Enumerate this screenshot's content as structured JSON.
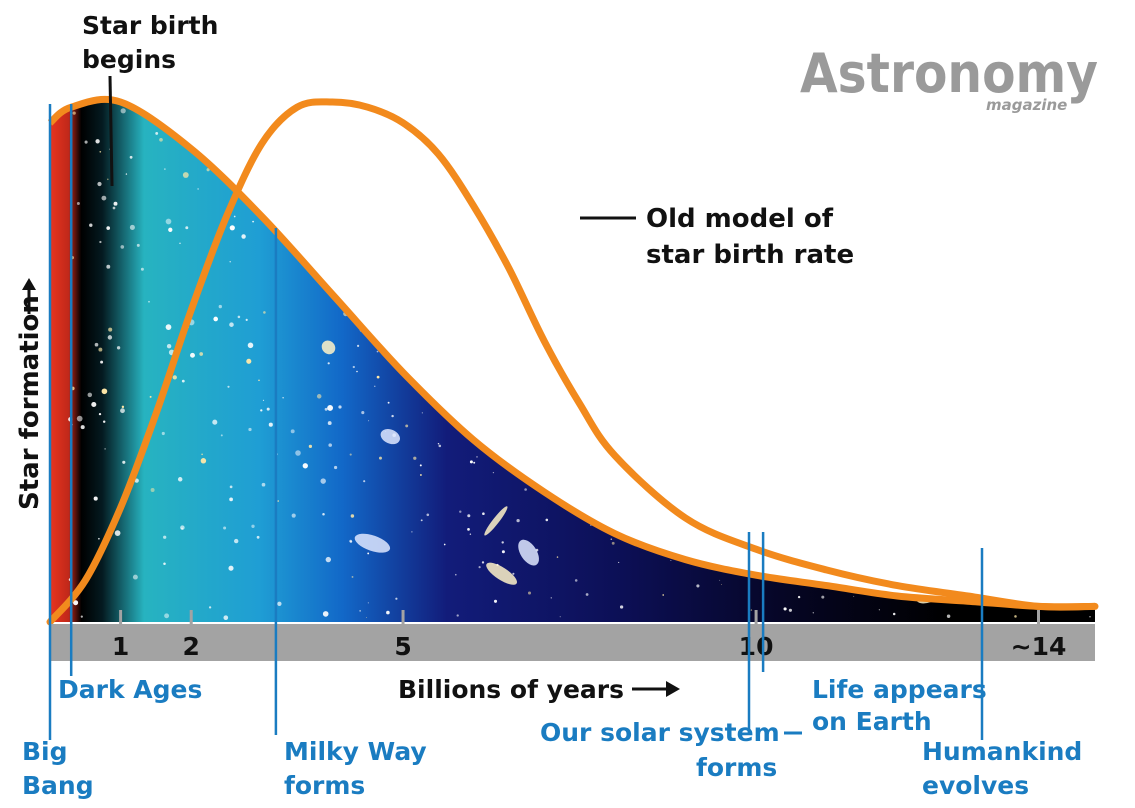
{
  "logo": {
    "name": "Astronomy",
    "sub": "magazine"
  },
  "colors": {
    "curve": "#f28a1d",
    "marker": "#1a7cc1",
    "axis_band": "#a3a3a3"
  },
  "chart_data": {
    "type": "line",
    "title": "",
    "xlabel": "Billions of years",
    "ylabel": "Star formation",
    "x_ticks": [
      "1",
      "2",
      "5",
      "10",
      "~14"
    ],
    "x_tick_values": [
      1,
      2,
      5,
      10,
      14
    ],
    "xlim": [
      0,
      14.8
    ],
    "y_scale": "relative (no numeric axis)",
    "series": [
      {
        "name": "Star birth rate",
        "style": "filled area (cosmic background)",
        "x": [
          0,
          0.3,
          1.0,
          2.0,
          3.0,
          4.0,
          5.0,
          6.0,
          7.0,
          8.0,
          9.0,
          10.0,
          11.0,
          12.0,
          13.0,
          14.0,
          14.8
        ],
        "y": [
          0.96,
          0.99,
          1.0,
          0.91,
          0.78,
          0.63,
          0.48,
          0.35,
          0.25,
          0.17,
          0.12,
          0.09,
          0.07,
          0.05,
          0.04,
          0.03,
          0.03
        ]
      },
      {
        "name": "Old model of star birth rate",
        "style": "orange line",
        "x": [
          0,
          0.5,
          1.0,
          1.5,
          2.0,
          2.5,
          3.0,
          3.5,
          4.0,
          4.5,
          5.0,
          5.5,
          6.0,
          6.5,
          7.0,
          7.5,
          8.0,
          9.0,
          10.0,
          11.0,
          12.0,
          13.0,
          14.0,
          14.8
        ],
        "y": [
          0.0,
          0.08,
          0.22,
          0.4,
          0.6,
          0.78,
          0.92,
          0.99,
          1.0,
          0.99,
          0.96,
          0.9,
          0.8,
          0.68,
          0.54,
          0.42,
          0.32,
          0.2,
          0.14,
          0.1,
          0.07,
          0.05,
          0.03,
          0.03
        ]
      }
    ],
    "annotations": [
      {
        "id": "star_birth",
        "text": [
          "Star birth",
          "begins"
        ],
        "x": 0.7,
        "color": "black"
      },
      {
        "id": "old_model",
        "text": [
          "Old model of",
          "star birth rate"
        ],
        "color": "black"
      },
      {
        "id": "big_bang",
        "text": [
          "Big",
          "Bang"
        ],
        "x": 0.0,
        "color": "blue"
      },
      {
        "id": "dark_ages",
        "text": [
          "Dark Ages"
        ],
        "x": 0.3,
        "color": "blue"
      },
      {
        "id": "milky_way",
        "text": [
          "Milky Way",
          "forms"
        ],
        "x": 3.2,
        "color": "blue"
      },
      {
        "id": "solar_system",
        "text": [
          "Our solar system",
          "forms"
        ],
        "x": 9.9,
        "color": "blue"
      },
      {
        "id": "life",
        "text": [
          "Life appears",
          "on Earth"
        ],
        "x": 10.1,
        "color": "blue"
      },
      {
        "id": "humankind",
        "text": [
          "Humankind",
          "evolves"
        ],
        "x": 13.2,
        "color": "blue"
      }
    ]
  }
}
